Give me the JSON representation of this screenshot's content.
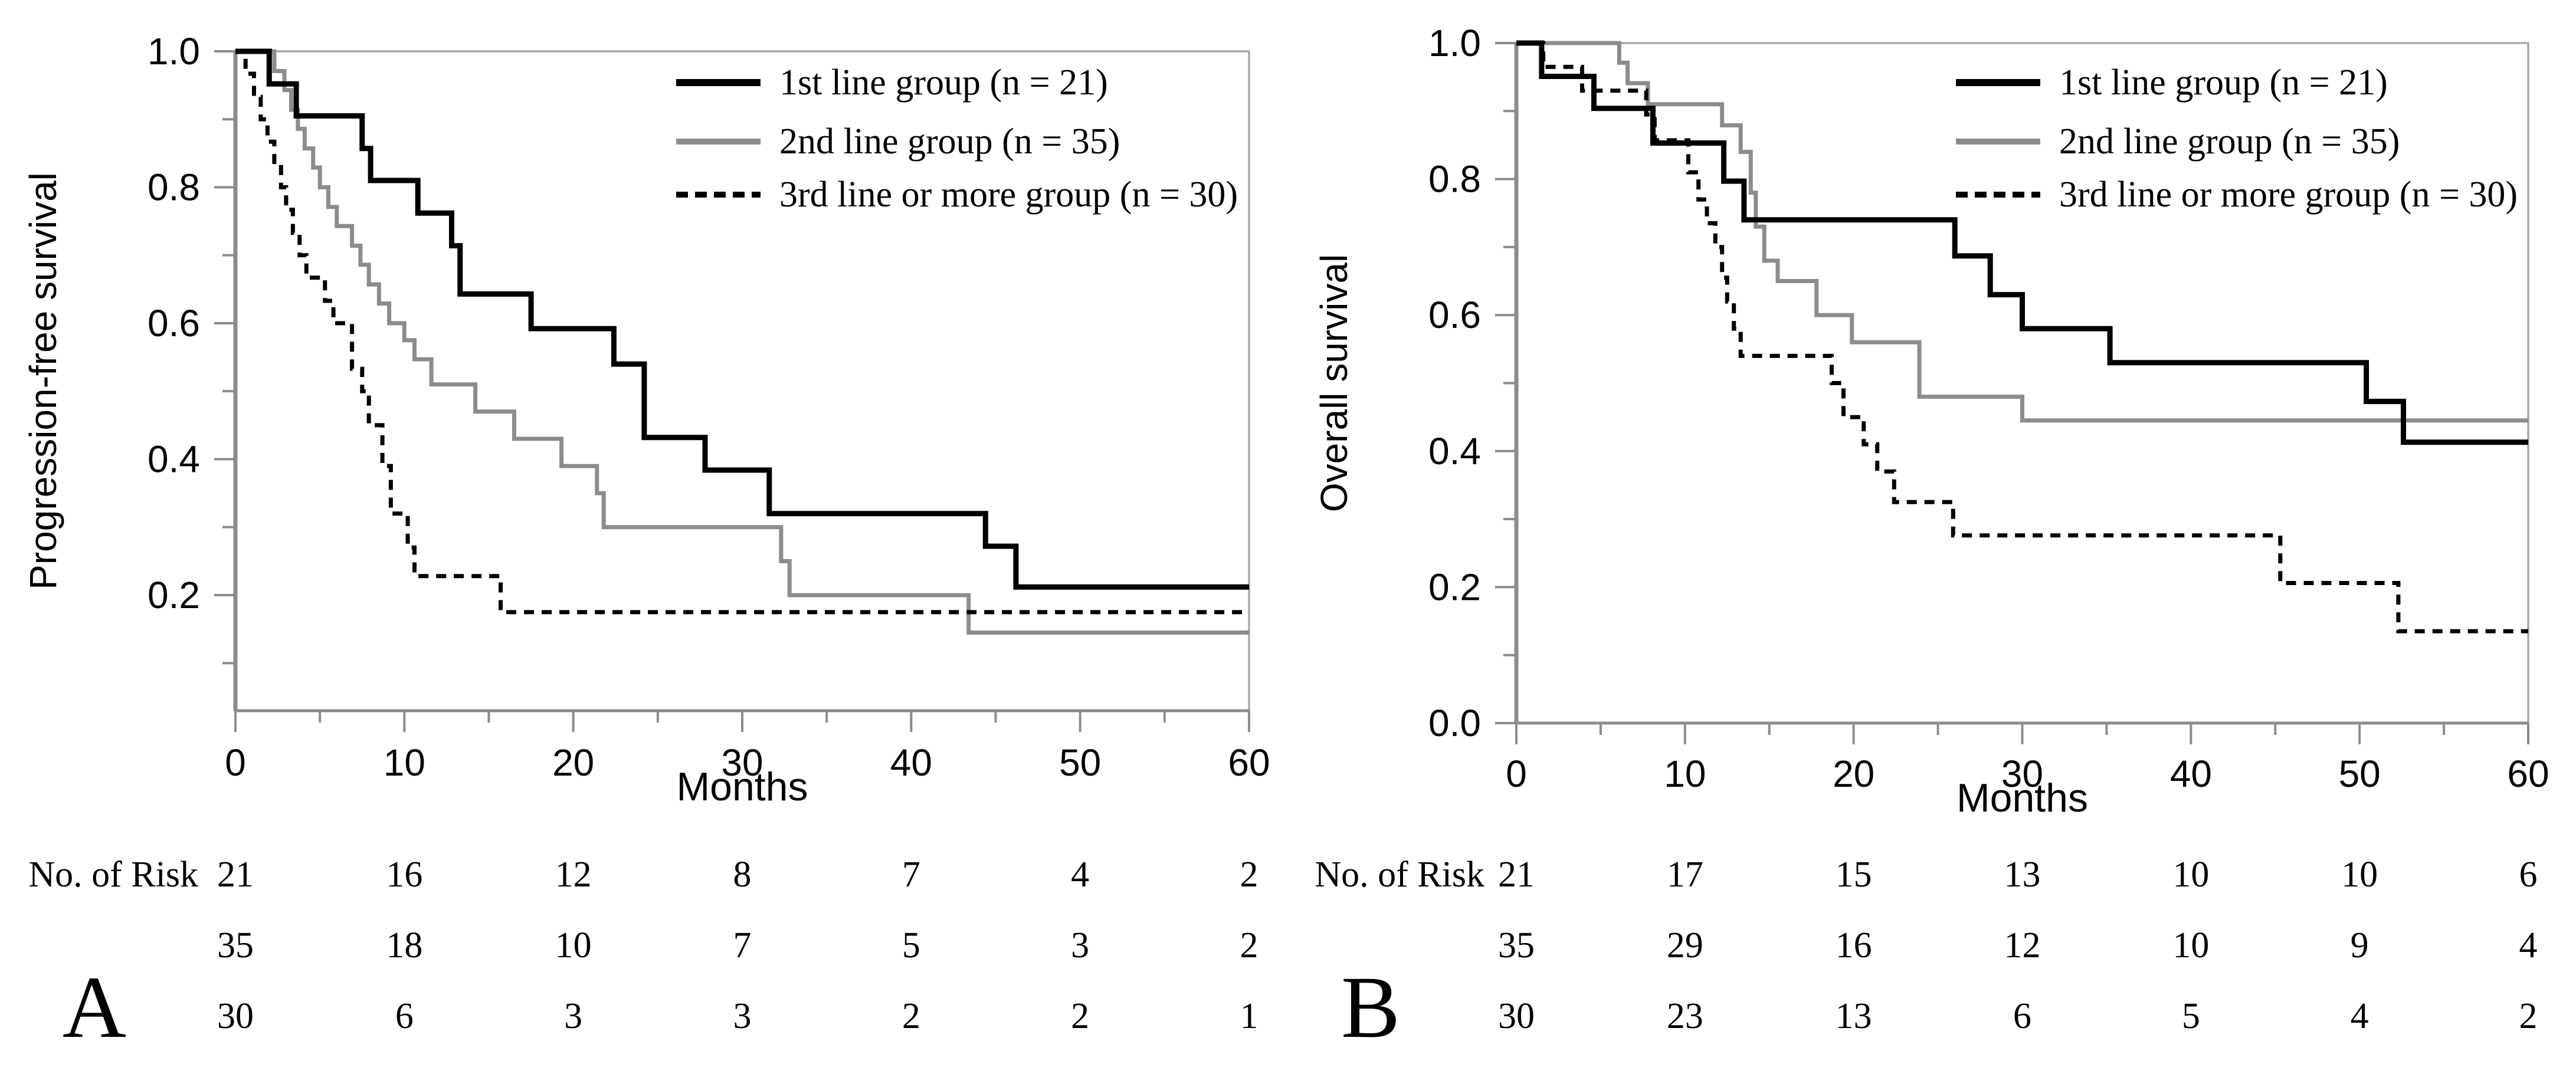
{
  "figure": {
    "background": "#ffffff",
    "frame_color": "#a9a9a9",
    "axis_color": "#8c8c8c",
    "text_color": "#000000"
  },
  "chart_data": [
    {
      "type": "line",
      "subtype": "kaplan-meier-step",
      "panel_label": "A",
      "title": "",
      "xlabel": "Months",
      "ylabel": "Progression-free survival",
      "xlim": [
        0,
        60
      ],
      "ylim": [
        0.03,
        1.0
      ],
      "grid": false,
      "legend_position": "top-right",
      "x_ticks_labeled": [
        0,
        10,
        20,
        30,
        40,
        50,
        60
      ],
      "x_ticks_minor": [
        5,
        15,
        25,
        35,
        45,
        55
      ],
      "y_ticks_labeled": [
        0.2,
        0.4,
        0.6,
        0.8,
        1.0
      ],
      "y_ticks_minor": [
        0.1,
        0.3,
        0.5,
        0.7,
        0.9
      ],
      "series": [
        {
          "name": "1st line group",
          "legend_label": "1st line group (n = 21)",
          "n": 21,
          "color": "#000000",
          "line_style": "solid",
          "stroke_width": 9,
          "points": [
            [
              0,
              1.0
            ],
            [
              2,
              0.952
            ],
            [
              3.6,
              0.905
            ],
            [
              7.5,
              0.857
            ],
            [
              8.0,
              0.81
            ],
            [
              10.8,
              0.762
            ],
            [
              12.8,
              0.714
            ],
            [
              13.3,
              0.643
            ],
            [
              17.5,
              0.592
            ],
            [
              22.4,
              0.54
            ],
            [
              24.2,
              0.432
            ],
            [
              27.8,
              0.384
            ],
            [
              31.6,
              0.32
            ],
            [
              44.4,
              0.272
            ],
            [
              46.2,
              0.212
            ],
            [
              60,
              0.212
            ]
          ]
        },
        {
          "name": "2nd line group",
          "legend_label": "2nd line group (n = 35)",
          "n": 35,
          "color": "#8c8c8c",
          "line_style": "solid",
          "stroke_width": 7,
          "points": [
            [
              0,
              1.0
            ],
            [
              2.3,
              0.971
            ],
            [
              2.9,
              0.943
            ],
            [
              3.3,
              0.914
            ],
            [
              3.7,
              0.886
            ],
            [
              4.1,
              0.857
            ],
            [
              4.6,
              0.829
            ],
            [
              5.0,
              0.8
            ],
            [
              5.5,
              0.771
            ],
            [
              6.0,
              0.743
            ],
            [
              6.9,
              0.714
            ],
            [
              7.4,
              0.686
            ],
            [
              7.9,
              0.657
            ],
            [
              8.5,
              0.629
            ],
            [
              9.1,
              0.6
            ],
            [
              10.0,
              0.575
            ],
            [
              10.6,
              0.547
            ],
            [
              11.6,
              0.51
            ],
            [
              14.2,
              0.47
            ],
            [
              16.5,
              0.43
            ],
            [
              19.3,
              0.39
            ],
            [
              21.4,
              0.35
            ],
            [
              21.8,
              0.3
            ],
            [
              32.3,
              0.25
            ],
            [
              32.8,
              0.2
            ],
            [
              43.4,
              0.145
            ],
            [
              60,
              0.145
            ]
          ]
        },
        {
          "name": "3rd line or more group",
          "legend_label": "3rd line or more group (n = 30)",
          "n": 30,
          "color": "#000000",
          "line_style": "dashed",
          "stroke_width": 7,
          "points": [
            [
              0,
              1.0
            ],
            [
              0.6,
              0.967
            ],
            [
              1.1,
              0.933
            ],
            [
              1.5,
              0.9
            ],
            [
              1.9,
              0.867
            ],
            [
              2.3,
              0.833
            ],
            [
              2.7,
              0.8
            ],
            [
              3.0,
              0.767
            ],
            [
              3.4,
              0.733
            ],
            [
              3.8,
              0.7
            ],
            [
              4.2,
              0.667
            ],
            [
              5.3,
              0.633
            ],
            [
              5.8,
              0.6
            ],
            [
              6.9,
              0.533
            ],
            [
              7.5,
              0.5
            ],
            [
              7.9,
              0.45
            ],
            [
              8.7,
              0.39
            ],
            [
              9.2,
              0.32
            ],
            [
              10.2,
              0.27
            ],
            [
              10.6,
              0.228
            ],
            [
              15.7,
              0.175
            ],
            [
              60,
              0.175
            ]
          ]
        }
      ],
      "risk_table": {
        "label": "No. of Risk",
        "months": [
          0,
          10,
          20,
          30,
          40,
          50,
          60
        ],
        "rows": [
          {
            "group": "1st line group",
            "values": [
              21,
              16,
              12,
              8,
              7,
              4,
              2
            ]
          },
          {
            "group": "2nd line group",
            "values": [
              35,
              18,
              10,
              7,
              5,
              3,
              2
            ]
          },
          {
            "group": "3rd line or more group",
            "values": [
              30,
              6,
              3,
              3,
              2,
              2,
              1
            ]
          }
        ]
      }
    },
    {
      "type": "line",
      "subtype": "kaplan-meier-step",
      "panel_label": "B",
      "title": "",
      "xlabel": "Months",
      "ylabel": "Overall survival",
      "xlim": [
        0,
        60
      ],
      "ylim": [
        0.0,
        1.0
      ],
      "grid": false,
      "legend_position": "top-right",
      "x_ticks_labeled": [
        0,
        10,
        20,
        30,
        40,
        50,
        60
      ],
      "x_ticks_minor": [
        5,
        15,
        25,
        35,
        45,
        55
      ],
      "y_ticks_labeled": [
        0.0,
        0.2,
        0.4,
        0.6,
        0.8,
        1.0
      ],
      "y_ticks_minor": [
        0.1,
        0.3,
        0.5,
        0.7,
        0.9
      ],
      "series": [
        {
          "name": "1st line group",
          "legend_label": "1st line group (n = 21)",
          "n": 21,
          "color": "#000000",
          "line_style": "solid",
          "stroke_width": 9,
          "points": [
            [
              0,
              1.0
            ],
            [
              1.5,
              0.951
            ],
            [
              4.6,
              0.904
            ],
            [
              8.1,
              0.853
            ],
            [
              12.3,
              0.797
            ],
            [
              13.5,
              0.74
            ],
            [
              26.0,
              0.687
            ],
            [
              28.1,
              0.63
            ],
            [
              30.0,
              0.58
            ],
            [
              35.2,
              0.53
            ],
            [
              50.4,
              0.473
            ],
            [
              52.6,
              0.413
            ],
            [
              60,
              0.413
            ]
          ]
        },
        {
          "name": "2nd line group",
          "legend_label": "2nd line group (n = 35)",
          "n": 35,
          "color": "#8c8c8c",
          "line_style": "solid",
          "stroke_width": 7,
          "points": [
            [
              0,
              1.0
            ],
            [
              6.1,
              0.971
            ],
            [
              6.6,
              0.941
            ],
            [
              7.8,
              0.91
            ],
            [
              12.2,
              0.879
            ],
            [
              13.3,
              0.84
            ],
            [
              13.9,
              0.78
            ],
            [
              14.2,
              0.73
            ],
            [
              14.7,
              0.68
            ],
            [
              15.5,
              0.65
            ],
            [
              17.8,
              0.6
            ],
            [
              19.9,
              0.56
            ],
            [
              23.9,
              0.48
            ],
            [
              30.0,
              0.445
            ],
            [
              60,
              0.445
            ]
          ]
        },
        {
          "name": "3rd line or more group",
          "legend_label": "3rd line or more group (n = 30)",
          "n": 30,
          "color": "#000000",
          "line_style": "dashed",
          "stroke_width": 7,
          "points": [
            [
              0,
              1.0
            ],
            [
              1.6,
              0.965
            ],
            [
              3.9,
              0.93
            ],
            [
              7.7,
              0.895
            ],
            [
              8.2,
              0.857
            ],
            [
              10.2,
              0.81
            ],
            [
              10.8,
              0.77
            ],
            [
              11.3,
              0.735
            ],
            [
              11.8,
              0.7
            ],
            [
              12.2,
              0.655
            ],
            [
              12.5,
              0.62
            ],
            [
              12.9,
              0.58
            ],
            [
              13.3,
              0.54
            ],
            [
              18.7,
              0.5
            ],
            [
              19.4,
              0.45
            ],
            [
              20.6,
              0.41
            ],
            [
              21.4,
              0.37
            ],
            [
              22.4,
              0.325
            ],
            [
              25.9,
              0.276
            ],
            [
              45.3,
              0.206
            ],
            [
              52.3,
              0.135
            ],
            [
              60,
              0.135
            ]
          ]
        }
      ],
      "risk_table": {
        "label": "No. of Risk",
        "months": [
          0,
          10,
          20,
          30,
          40,
          50,
          60
        ],
        "rows": [
          {
            "group": "1st line group",
            "values": [
              21,
              17,
              15,
              13,
              10,
              10,
              6
            ]
          },
          {
            "group": "2nd line group",
            "values": [
              35,
              29,
              16,
              12,
              10,
              9,
              4
            ]
          },
          {
            "group": "3rd line or more group",
            "values": [
              30,
              23,
              13,
              6,
              5,
              4,
              2
            ]
          }
        ]
      }
    }
  ]
}
